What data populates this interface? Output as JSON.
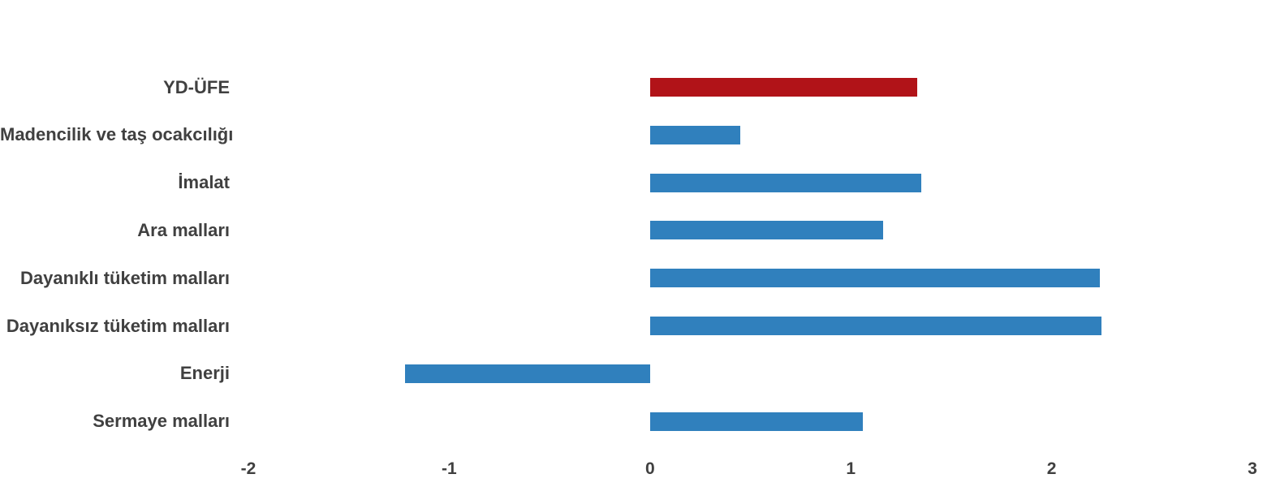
{
  "chart_data": {
    "type": "bar",
    "orientation": "horizontal",
    "title": "",
    "xlabel": "",
    "ylabel": "",
    "grid": false,
    "legend": false,
    "categories": [
      "YD-ÜFE",
      "Madencilik ve taş ocakcılığı",
      "İmalat",
      "Ara malları",
      "Dayanıklı tüketim malları",
      "Dayanıksız tüketim malları",
      "Enerji",
      "Sermaye malları"
    ],
    "values": [
      1.33,
      0.45,
      1.35,
      1.16,
      2.24,
      2.25,
      -1.22,
      1.06
    ],
    "bar_colors": [
      "#b11318",
      "#3080bd",
      "#3080bd",
      "#3080bd",
      "#3080bd",
      "#3080bd",
      "#3080bd",
      "#3080bd"
    ],
    "xlim": [
      -2,
      3
    ],
    "x_ticks": [
      "-2",
      "-1",
      "0",
      "1",
      "2",
      "3"
    ],
    "x_tick_values": [
      -2,
      -1,
      0,
      1,
      2,
      3
    ]
  },
  "colors": {
    "highlight_bar": "#b11318",
    "default_bar": "#3080bd",
    "label_text": "#404040",
    "background": "#ffffff"
  }
}
